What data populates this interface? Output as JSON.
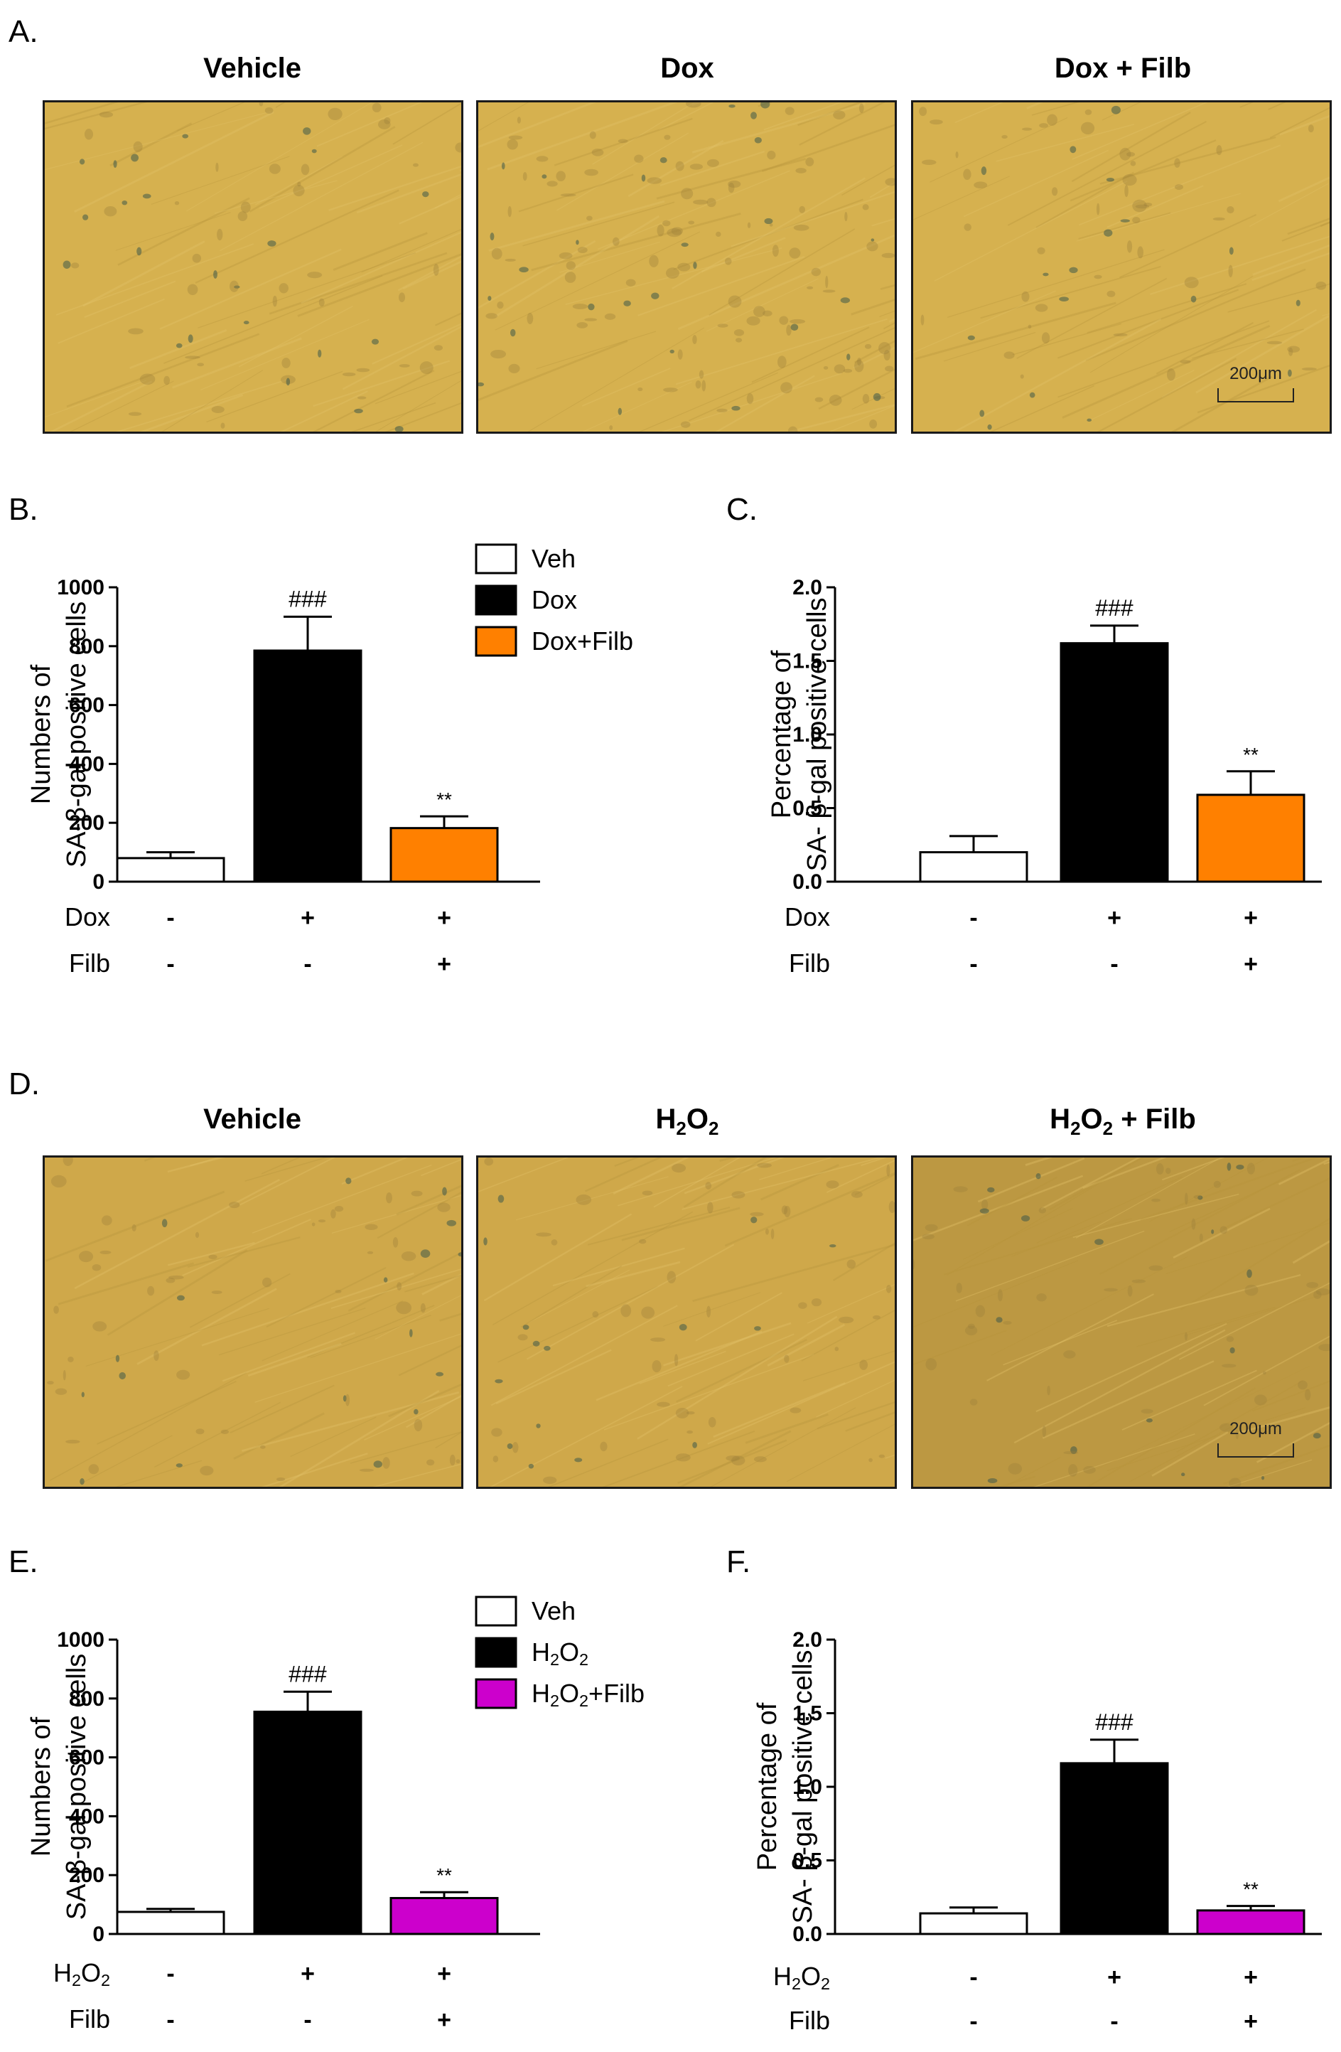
{
  "panel_labels": {
    "A": "A.",
    "B": "B.",
    "C": "C.",
    "D": "D.",
    "E": "E.",
    "F": "F."
  },
  "micrographs_top": {
    "titles": [
      "Vehicle",
      "Dox",
      "Dox + Filb"
    ],
    "scale_bar": "200μm",
    "stain_color": "#d6b14f"
  },
  "micrographs_bottom": {
    "titles": [
      "Vehicle",
      "H2O2",
      "H2O2 + Filb"
    ],
    "scale_bar": "200μm",
    "stain_color": "#cfa84a"
  },
  "chart_data": [
    {
      "id": "B",
      "type": "bar",
      "categories": [
        "Veh",
        "Dox",
        "Dox+Filb"
      ],
      "values": [
        80,
        785,
        182
      ],
      "errors": [
        20,
        115,
        40
      ],
      "colors": [
        "#ffffff",
        "#000000",
        "#ff8000"
      ],
      "annotations": [
        "",
        "###",
        "**"
      ],
      "ylabel_lines": [
        "Numbers of",
        "SA-β-gal positive cells"
      ],
      "ylim": [
        0,
        1000
      ],
      "yticks": [
        "0",
        "200",
        "400",
        "600",
        "800",
        "1000"
      ],
      "legend": {
        "placement": "top-right",
        "entries": [
          "Veh",
          "Dox",
          "Dox+Filb"
        ]
      },
      "treatment_rows": [
        {
          "label": "Dox",
          "values": [
            "-",
            "+",
            "+"
          ]
        },
        {
          "label": "Filb",
          "values": [
            "-",
            "-",
            "+"
          ]
        }
      ]
    },
    {
      "id": "C",
      "type": "bar",
      "categories": [
        "Veh",
        "Dox",
        "Dox+Filb"
      ],
      "values": [
        0.2,
        1.62,
        0.59
      ],
      "errors": [
        0.11,
        0.12,
        0.16
      ],
      "colors": [
        "#ffffff",
        "#000000",
        "#ff8000"
      ],
      "annotations": [
        "",
        "###",
        "**"
      ],
      "ylabel_lines": [
        "Percentage of",
        "SA- β-gal positive cells"
      ],
      "ylim": [
        0,
        2.0
      ],
      "yticks": [
        "0.0",
        "0.5",
        "1.0",
        "1.5",
        "2.0"
      ],
      "treatment_rows": [
        {
          "label": "Dox",
          "values": [
            "-",
            "+",
            "+"
          ]
        },
        {
          "label": "Filb",
          "values": [
            "-",
            "-",
            "+"
          ]
        }
      ]
    },
    {
      "id": "E",
      "type": "bar",
      "categories": [
        "Veh",
        "H2O2",
        "H2O2+Filb"
      ],
      "values": [
        75,
        755,
        122
      ],
      "errors": [
        10,
        68,
        20
      ],
      "colors": [
        "#ffffff",
        "#000000",
        "#cc00cc"
      ],
      "annotations": [
        "",
        "###",
        "**"
      ],
      "ylabel_lines": [
        "Numbers of",
        "SA-β-gal positive cells"
      ],
      "ylim": [
        0,
        1000
      ],
      "yticks": [
        "0",
        "200",
        "400",
        "600",
        "800",
        "1000"
      ],
      "legend": {
        "placement": "top-right",
        "entries": [
          "Veh",
          "H2O2",
          "H2O2+Filb"
        ]
      },
      "treatment_rows": [
        {
          "label": "H2O2",
          "values": [
            "-",
            "+",
            "+"
          ]
        },
        {
          "label": "Filb",
          "values": [
            "-",
            "-",
            "+"
          ]
        }
      ]
    },
    {
      "id": "F",
      "type": "bar",
      "categories": [
        "Veh",
        "H2O2",
        "H2O2+Filb"
      ],
      "values": [
        0.14,
        1.16,
        0.16
      ],
      "errors": [
        0.04,
        0.16,
        0.03
      ],
      "colors": [
        "#ffffff",
        "#000000",
        "#cc00cc"
      ],
      "annotations": [
        "",
        "###",
        "**"
      ],
      "ylabel_lines": [
        "Percentage of",
        "SA- β-gal positive cells"
      ],
      "ylim": [
        0,
        2.0
      ],
      "yticks": [
        "0.0",
        "0.5",
        "1.0",
        "1.5",
        "2.0"
      ],
      "treatment_rows": [
        {
          "label": "H2O2",
          "values": [
            "-",
            "+",
            "+"
          ]
        },
        {
          "label": "Filb",
          "values": [
            "-",
            "-",
            "+"
          ]
        }
      ]
    }
  ]
}
